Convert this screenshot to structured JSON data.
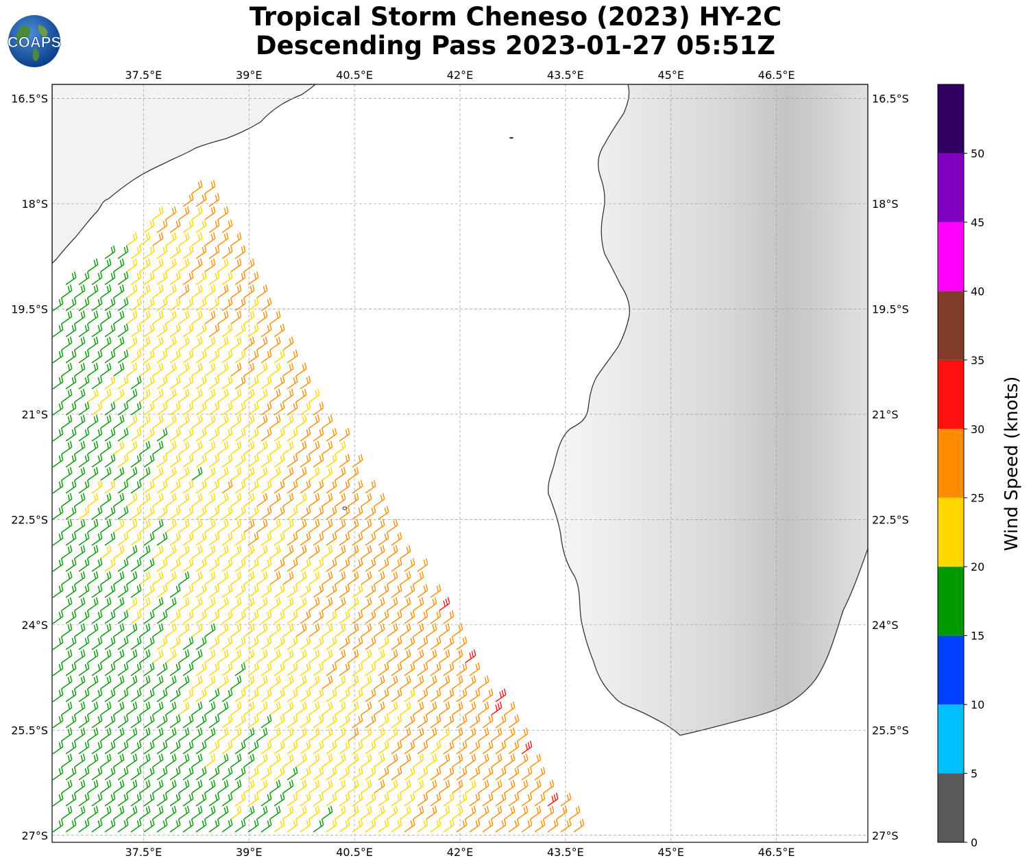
{
  "title": {
    "line1": "Tropical Storm Cheneso (2023) HY-2C",
    "line2": "Descending Pass 2023-01-27 05:51Z"
  },
  "logo": {
    "text": "COAPS"
  },
  "map": {
    "lon_range": [
      36.2,
      47.8
    ],
    "lat_range": [
      -27.1,
      -16.3
    ],
    "lon_ticks": [
      "37.5°E",
      "39°E",
      "40.5°E",
      "42°E",
      "43.5°E",
      "45°E",
      "46.5°E"
    ],
    "lat_ticks": [
      "16.5°S",
      "18°S",
      "19.5°S",
      "21°S",
      "22.5°S",
      "24°S",
      "25.5°S",
      "27°S"
    ],
    "gridlines": true,
    "land_color": "#f2f2f2",
    "coast_color": "#333333"
  },
  "colorbar": {
    "label": "Wind Speed (knots)",
    "ticks": [
      "0",
      "5",
      "10",
      "15",
      "20",
      "25",
      "30",
      "35",
      "40",
      "45",
      "50"
    ],
    "bins": [
      {
        "min": 0,
        "max": 5,
        "color": "#595959"
      },
      {
        "min": 5,
        "max": 10,
        "color": "#00bfff"
      },
      {
        "min": 10,
        "max": 15,
        "color": "#0040ff"
      },
      {
        "min": 15,
        "max": 20,
        "color": "#009900"
      },
      {
        "min": 20,
        "max": 25,
        "color": "#ffd700"
      },
      {
        "min": 25,
        "max": 30,
        "color": "#ff8c00"
      },
      {
        "min": 30,
        "max": 35,
        "color": "#ff1010"
      },
      {
        "min": 35,
        "max": 40,
        "color": "#803c28"
      },
      {
        "min": 40,
        "max": 45,
        "color": "#ff00ff"
      },
      {
        "min": 45,
        "max": 50,
        "color": "#8000c0"
      },
      {
        "min": 50,
        "max": 55,
        "color": "#300060"
      }
    ]
  },
  "swath": {
    "description_color_map": "wind barbs colored by wind speed bin",
    "polygon_lonlat": [
      [
        38.4,
        -17.7
      ],
      [
        40.5,
        -21.8
      ],
      [
        43.8,
        -27.1
      ],
      [
        36.2,
        -27.1
      ],
      [
        36.2,
        -19.2
      ]
    ]
  }
}
